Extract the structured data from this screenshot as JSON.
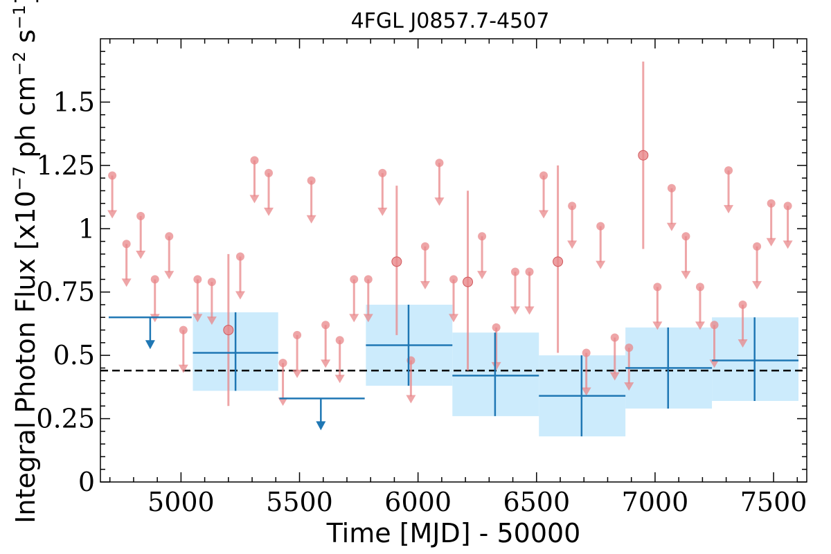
{
  "chart_data": {
    "type": "scatter",
    "title": "4FGL J0857.7-4507",
    "xlabel": "Time [MJD] - 50000",
    "ylabel": "Integral Photon Flux [x10",
    "ylabel_exp1": "−7",
    "ylabel_mid": " ph cm",
    "ylabel_exp2": "−2",
    "ylabel_s": " s",
    "ylabel_exp3": "−1",
    "ylabel_end": "]",
    "xlim": [
      4660,
      7640
    ],
    "ylim": [
      0,
      1.75
    ],
    "x_ticks": [
      5000,
      5500,
      6000,
      6500,
      7000,
      7500
    ],
    "x_tick_labels": [
      "5000",
      "5500",
      "6000",
      "6500",
      "7000",
      "7500"
    ],
    "y_ticks": [
      0,
      0.25,
      0.5,
      0.75,
      1,
      1.25,
      1.5
    ],
    "y_tick_labels": [
      "0",
      "0.25",
      "0.5",
      "0.75",
      "1",
      "1.25",
      "1.5"
    ],
    "reference_line": {
      "y": 0.44,
      "style": "dashed",
      "color": "#000000"
    },
    "colors": {
      "fine": "#e8878a",
      "coarse": "#1f77b4",
      "band": "#bfe6fb"
    },
    "series": [
      {
        "bin_width_days": 60,
        "kind": "upper_limits",
        "points": [
          {
            "x": 4710,
            "y": 1.21
          },
          {
            "x": 4770,
            "y": 0.94
          },
          {
            "x": 4830,
            "y": 1.05
          },
          {
            "x": 4890,
            "y": 0.8
          },
          {
            "x": 4950,
            "y": 0.97
          },
          {
            "x": 5010,
            "y": 0.6
          },
          {
            "x": 5070,
            "y": 0.8
          },
          {
            "x": 5130,
            "y": 0.79
          },
          {
            "x": 5250,
            "y": 0.89
          },
          {
            "x": 5310,
            "y": 1.27
          },
          {
            "x": 5370,
            "y": 1.22
          },
          {
            "x": 5430,
            "y": 0.47
          },
          {
            "x": 5490,
            "y": 0.58
          },
          {
            "x": 5550,
            "y": 1.19
          },
          {
            "x": 5610,
            "y": 0.62
          },
          {
            "x": 5670,
            "y": 0.56
          },
          {
            "x": 5730,
            "y": 0.8
          },
          {
            "x": 5790,
            "y": 0.8
          },
          {
            "x": 5850,
            "y": 1.22
          },
          {
            "x": 5970,
            "y": 0.48
          },
          {
            "x": 6030,
            "y": 0.93
          },
          {
            "x": 6090,
            "y": 1.26
          },
          {
            "x": 6150,
            "y": 0.8
          },
          {
            "x": 6270,
            "y": 0.97
          },
          {
            "x": 6330,
            "y": 0.61
          },
          {
            "x": 6410,
            "y": 0.83
          },
          {
            "x": 6470,
            "y": 0.83
          },
          {
            "x": 6530,
            "y": 1.21
          },
          {
            "x": 6650,
            "y": 1.09
          },
          {
            "x": 6710,
            "y": 0.51
          },
          {
            "x": 6770,
            "y": 1.01
          },
          {
            "x": 6830,
            "y": 0.57
          },
          {
            "x": 6890,
            "y": 0.53
          },
          {
            "x": 7010,
            "y": 0.77
          },
          {
            "x": 7070,
            "y": 1.16
          },
          {
            "x": 7130,
            "y": 0.97
          },
          {
            "x": 7190,
            "y": 0.77
          },
          {
            "x": 7250,
            "y": 0.62
          },
          {
            "x": 7310,
            "y": 1.23
          },
          {
            "x": 7370,
            "y": 0.7
          },
          {
            "x": 7430,
            "y": 0.93
          },
          {
            "x": 7490,
            "y": 1.1
          },
          {
            "x": 7560,
            "y": 1.09
          }
        ]
      },
      {
        "bin_width_days": 60,
        "kind": "detections",
        "points": [
          {
            "x": 5200,
            "y": 0.6,
            "ylow": 0.3,
            "yhigh": 0.9
          },
          {
            "x": 5910,
            "y": 0.87,
            "ylow": 0.58,
            "yhigh": 1.17
          },
          {
            "x": 6210,
            "y": 0.79,
            "ylow": 0.44,
            "yhigh": 1.15
          },
          {
            "x": 6590,
            "y": 0.87,
            "ylow": 0.51,
            "yhigh": 1.25
          },
          {
            "x": 6950,
            "y": 1.29,
            "ylow": 0.92,
            "yhigh": 1.66
          }
        ]
      },
      {
        "bin_width_days": 365,
        "kind": "upper_limits",
        "points": [
          {
            "x": 4870,
            "x0": 4695,
            "x1": 5045,
            "y": 0.65
          },
          {
            "x": 5590,
            "x0": 5415,
            "x1": 5775,
            "y": 0.33
          }
        ]
      },
      {
        "bin_width_days": 365,
        "kind": "detections",
        "points": [
          {
            "x": 5230,
            "x0": 5050,
            "x1": 5410,
            "y": 0.51,
            "ylow": 0.36,
            "yhigh": 0.67
          },
          {
            "x": 5960,
            "x0": 5780,
            "x1": 6145,
            "y": 0.54,
            "ylow": 0.38,
            "yhigh": 0.7
          },
          {
            "x": 6325,
            "x0": 6145,
            "x1": 6510,
            "y": 0.42,
            "ylow": 0.26,
            "yhigh": 0.59
          },
          {
            "x": 6690,
            "x0": 6510,
            "x1": 6875,
            "y": 0.34,
            "ylow": 0.18,
            "yhigh": 0.5
          },
          {
            "x": 7055,
            "x0": 6875,
            "x1": 7240,
            "y": 0.45,
            "ylow": 0.29,
            "yhigh": 0.61
          },
          {
            "x": 7420,
            "x0": 7240,
            "x1": 7605,
            "y": 0.48,
            "ylow": 0.32,
            "yhigh": 0.65
          }
        ]
      }
    ]
  }
}
